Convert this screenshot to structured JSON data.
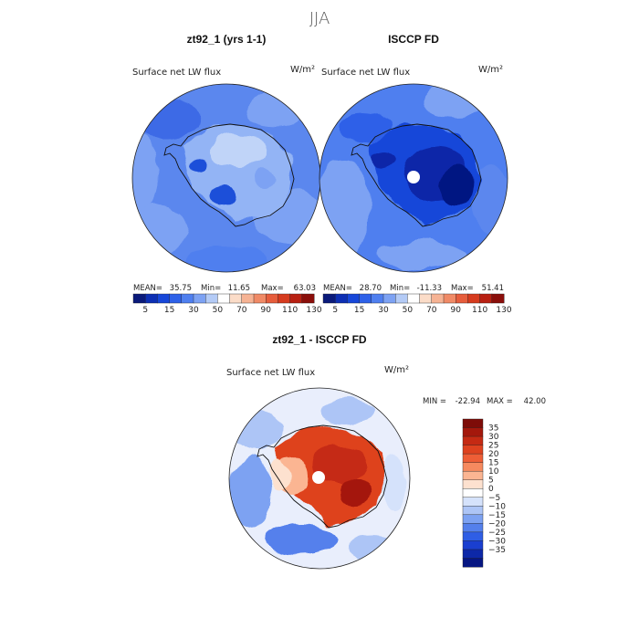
{
  "page": {
    "title": "JJA"
  },
  "chart_data": [
    {
      "type": "heatmap",
      "projection": "south-polar-stereographic",
      "title": "zt92_1 (yrs 1-1)",
      "subtitle": "Surface net LW flux",
      "units": "W/m²",
      "stats": {
        "mean_label": "MEAN=",
        "mean": "35.75",
        "min_label": "Min=",
        "min": "11.65",
        "max_label": "Max=",
        "max": "63.03"
      },
      "colorbar": {
        "levels": [
          5,
          10,
          15,
          20,
          30,
          40,
          50,
          60,
          70,
          80,
          90,
          100,
          110,
          120,
          130
        ],
        "labels": [
          "5",
          "15",
          "30",
          "50",
          "70",
          "90",
          "110",
          "130"
        ],
        "colors": [
          "#0a1a7a",
          "#0d2fb4",
          "#1747d9",
          "#2e61e8",
          "#4f7fef",
          "#7da2f3",
          "#b4cbf6",
          "#ffffff",
          "#fbdcc8",
          "#f6b394",
          "#f08a66",
          "#e65d3c",
          "#d63b1e",
          "#b82012",
          "#8a0e0a"
        ]
      }
    },
    {
      "type": "heatmap",
      "projection": "south-polar-stereographic",
      "title": "ISCCP FD",
      "subtitle": "Surface net LW flux",
      "units": "W/m²",
      "stats": {
        "mean_label": "MEAN=",
        "mean": "28.70",
        "min_label": "Min=",
        "min": "-11.33",
        "max_label": "Max=",
        "max": "51.41"
      },
      "colorbar": {
        "levels": [
          5,
          10,
          15,
          20,
          30,
          40,
          50,
          60,
          70,
          80,
          90,
          100,
          110,
          120,
          130
        ],
        "labels": [
          "5",
          "15",
          "30",
          "50",
          "70",
          "90",
          "110",
          "130"
        ],
        "colors": [
          "#0a1a7a",
          "#0d2fb4",
          "#1747d9",
          "#2e61e8",
          "#4f7fef",
          "#7da2f3",
          "#b4cbf6",
          "#ffffff",
          "#fbdcc8",
          "#f6b394",
          "#f08a66",
          "#e65d3c",
          "#d63b1e",
          "#b82012",
          "#8a0e0a"
        ]
      }
    },
    {
      "type": "heatmap",
      "projection": "south-polar-stereographic",
      "title": "zt92_1 - ISCCP FD",
      "subtitle": "Surface net LW flux",
      "units": "W/m²",
      "stats": {
        "min_label": "MIN =",
        "min": "-22.94",
        "max_label": "MAX =",
        "max": "42.00"
      },
      "colorbar": {
        "labels": [
          "35",
          "30",
          "25",
          "20",
          "15",
          "10",
          "5",
          "0",
          "−5",
          "−10",
          "−15",
          "−20",
          "−25",
          "−30",
          "−35"
        ],
        "colors": [
          "#7e0c08",
          "#a4180c",
          "#c52a13",
          "#de421f",
          "#ee5e36",
          "#f68a5f",
          "#fbb592",
          "#fde1cf",
          "#ffffff",
          "#d5e2fb",
          "#adc5f6",
          "#7da2f2",
          "#5480ec",
          "#2f5ee5",
          "#1a3fd0",
          "#0d28a8",
          "#061682"
        ]
      }
    }
  ]
}
